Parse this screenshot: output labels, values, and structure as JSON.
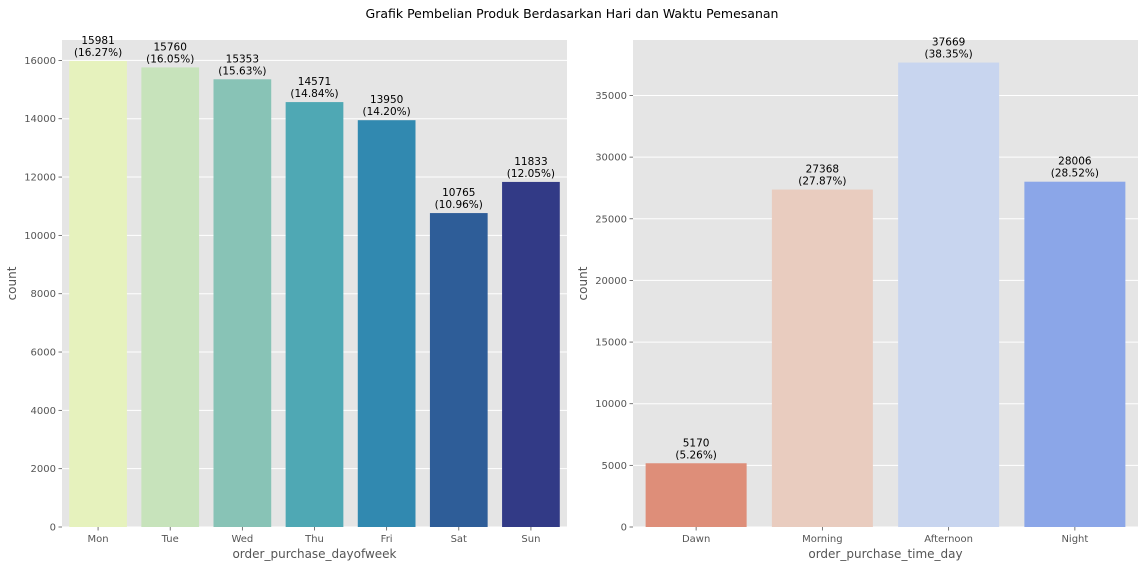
{
  "suptitle": "Grafik Pembelian Produk Berdasarkan Hari dan Waktu Pemesanan",
  "chart_data": [
    {
      "type": "bar",
      "xlabel": "order_purchase_dayofweek",
      "ylabel": "count",
      "categories": [
        "Mon",
        "Tue",
        "Wed",
        "Thu",
        "Fri",
        "Sat",
        "Sun"
      ],
      "values": [
        15981,
        15760,
        15353,
        14571,
        13950,
        10765,
        11833
      ],
      "data_labels": [
        "15981\n(16.27%)",
        "15760\n(16.05%)",
        "15353\n(15.63%)",
        "14571\n(14.84%)",
        "13950\n(14.20%)",
        "10765\n(10.96%)",
        "11833\n(12.05%)"
      ],
      "colors": [
        "#e6f2bd",
        "#c7e3bb",
        "#88c3b6",
        "#4fa8b4",
        "#3189b0",
        "#2e5d98",
        "#323a86"
      ],
      "ylim": [
        0,
        16700
      ],
      "yticks": [
        0,
        2000,
        4000,
        6000,
        8000,
        10000,
        12000,
        14000,
        16000
      ],
      "grid": true
    },
    {
      "type": "bar",
      "xlabel": "order_purchase_time_day",
      "ylabel": "count",
      "categories": [
        "Dawn",
        "Morning",
        "Afternoon",
        "Night"
      ],
      "values": [
        5170,
        27368,
        37669,
        28006
      ],
      "data_labels": [
        "5170\n(5.26%)",
        "27368\n(27.87%)",
        "37669\n(38.35%)",
        "28006\n(28.52%)"
      ],
      "colors": [
        "#de8e79",
        "#e9ccbf",
        "#c8d5ef",
        "#8ba6e8"
      ],
      "ylim": [
        0,
        39500
      ],
      "yticks": [
        0,
        5000,
        10000,
        15000,
        20000,
        25000,
        30000,
        35000
      ],
      "grid": true
    }
  ]
}
